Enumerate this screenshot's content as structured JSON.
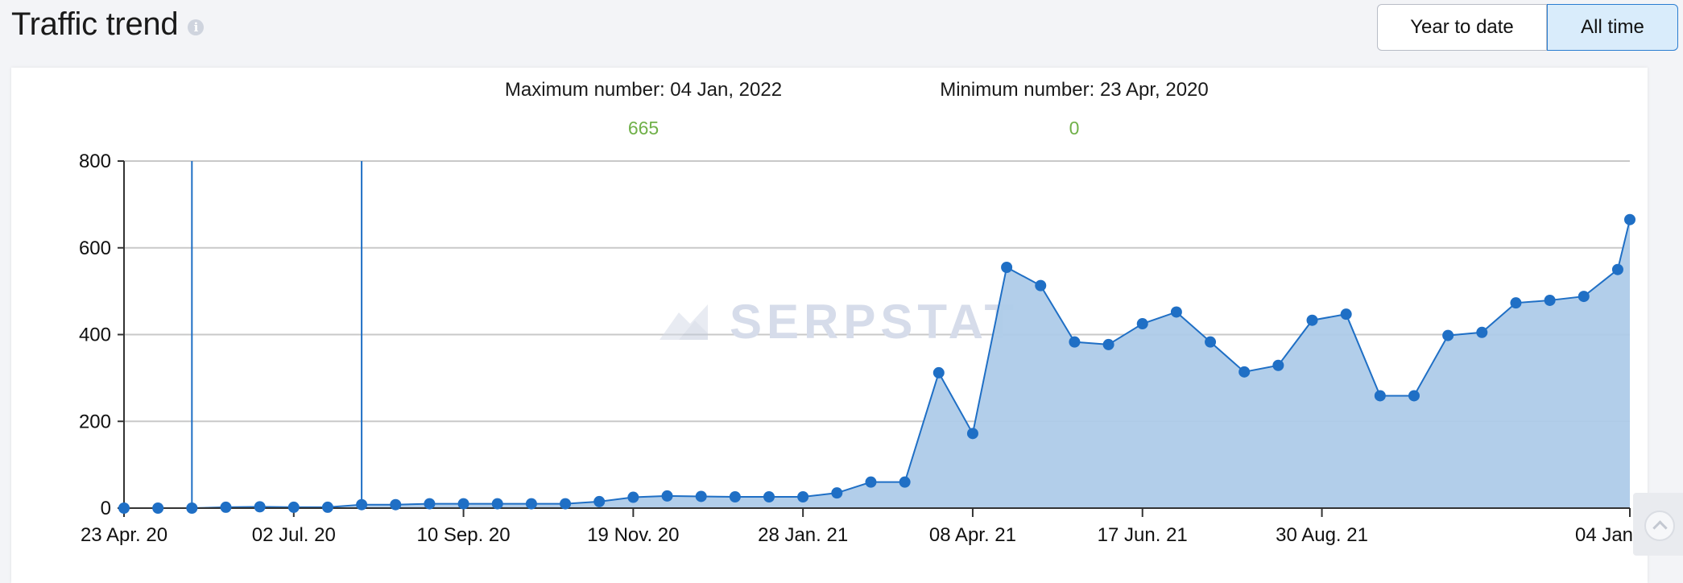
{
  "header": {
    "title": "Traffic trend",
    "info_icon": "info-icon"
  },
  "period_switch": {
    "year_to_date": "Year to date",
    "all_time": "All time",
    "selected": "All time"
  },
  "stats": {
    "max_label": "Maximum number: 04 Jan, 2022",
    "max_value": "665",
    "min_label": "Minimum number: 23 Apr, 2020",
    "min_value": "0"
  },
  "watermark": "SERPSTAT",
  "chart_data": {
    "type": "area",
    "title": "",
    "xlabel": "",
    "ylabel": "",
    "ylim": [
      0,
      800
    ],
    "yticks": [
      0,
      200,
      400,
      600,
      800
    ],
    "xtick_labels": [
      "23 Apr. 20",
      "02 Jul. 20",
      "10 Sep. 20",
      "19 Nov. 20",
      "28 Jan. 21",
      "08 Apr. 21",
      "17 Jun. 21",
      "30 Aug. 21",
      "04 Jan"
    ],
    "x_start": "2020-04-23",
    "x_end": "2022-01-04",
    "grid": true,
    "color": "#1f6fc5",
    "fill": "#aecbe9",
    "annotation_lines_dates": [
      "2020-05-21",
      "2020-07-30"
    ],
    "series": [
      {
        "x": [
          "2020-04-23",
          "2020-05-07",
          "2020-05-21",
          "2020-06-04",
          "2020-06-18",
          "2020-07-02",
          "2020-07-16",
          "2020-07-30",
          "2020-08-13",
          "2020-08-27",
          "2020-09-10",
          "2020-09-24",
          "2020-10-08",
          "2020-10-22",
          "2020-11-05",
          "2020-11-19",
          "2020-12-03",
          "2020-12-17",
          "2020-12-31",
          "2021-01-14",
          "2021-01-28",
          "2021-02-11",
          "2021-02-25",
          "2021-03-11",
          "2021-03-25",
          "2021-04-08",
          "2021-04-22",
          "2021-05-06",
          "2021-05-20",
          "2021-06-03",
          "2021-06-17",
          "2021-07-01",
          "2021-07-15",
          "2021-07-29",
          "2021-08-12",
          "2021-08-26",
          "2021-09-09",
          "2021-09-23",
          "2021-10-07",
          "2021-10-21",
          "2021-11-04",
          "2021-11-18",
          "2021-12-02",
          "2021-12-16",
          "2021-12-30",
          "2022-01-04"
        ],
        "values": [
          0,
          0,
          0,
          2,
          3,
          2,
          2,
          8,
          8,
          10,
          10,
          10,
          10,
          10,
          15,
          25,
          28,
          27,
          26,
          26,
          26,
          35,
          60,
          60,
          312,
          172,
          555,
          513,
          383,
          377,
          425,
          452,
          383,
          314,
          329,
          433,
          447,
          259,
          259,
          398,
          405,
          473,
          479,
          488,
          550,
          665
        ]
      }
    ]
  }
}
